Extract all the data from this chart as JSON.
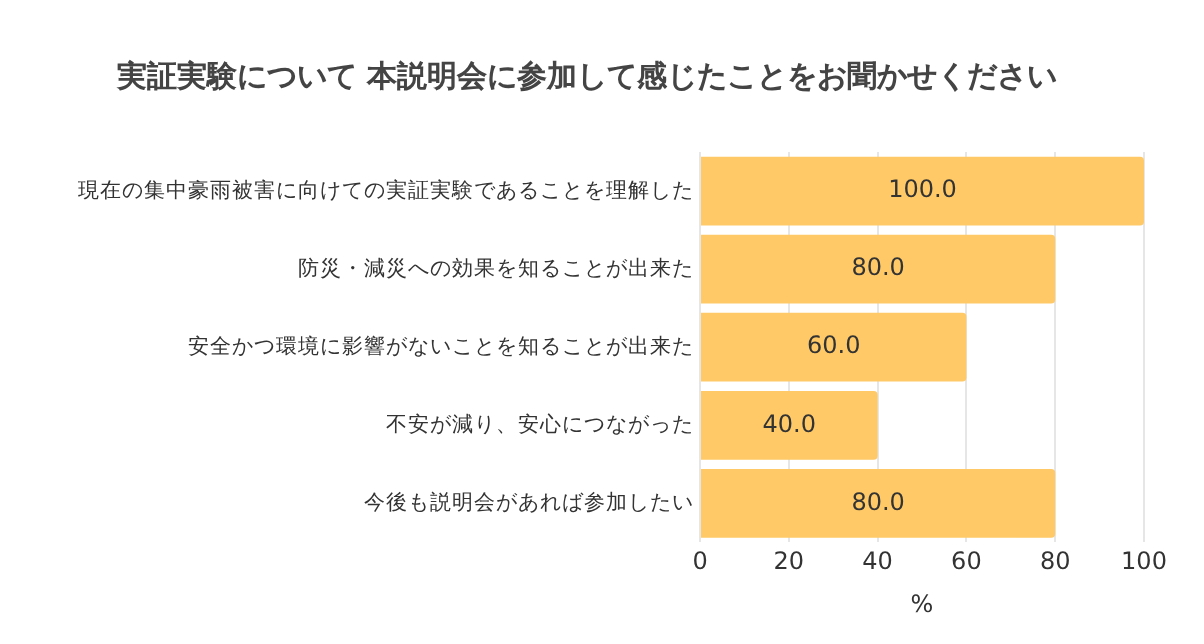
{
  "chart_data": {
    "type": "bar",
    "orientation": "horizontal",
    "title": "実証実験について 本説明会に参加して感じたことをお聞かせください",
    "xlabel": "%",
    "categories": [
      "現在の集中豪雨被害に向けての実証実験であることを理解した",
      "防災・減災への効果を知ることが出来た",
      "安全かつ環境に影響がないことを知ることが出来た",
      "不安が減り、安心につながった",
      "今後も説明会があれば参加したい"
    ],
    "values": [
      100,
      80,
      60,
      40,
      80
    ],
    "value_labels": [
      "100.0",
      "80.0",
      "60.0",
      "40.0",
      "80.0"
    ],
    "color": "#fec966",
    "xlim": [
      0,
      100
    ],
    "xticks": [
      0,
      20,
      40,
      60,
      80,
      100
    ],
    "grid": "x",
    "legend": false
  }
}
